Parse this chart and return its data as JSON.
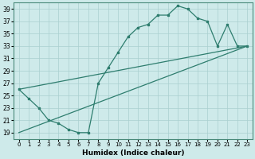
{
  "xlabel": "Humidex (Indice chaleur)",
  "bg_color": "#ceeaea",
  "grid_color": "#aacfcf",
  "line_color": "#2e7d6e",
  "xlim": [
    -0.5,
    23.5
  ],
  "ylim": [
    18,
    40
  ],
  "xticks": [
    0,
    1,
    2,
    3,
    4,
    5,
    6,
    7,
    8,
    9,
    10,
    11,
    12,
    13,
    14,
    15,
    16,
    17,
    18,
    19,
    20,
    21,
    22,
    23
  ],
  "yticks": [
    19,
    21,
    23,
    25,
    27,
    29,
    31,
    33,
    35,
    37,
    39
  ],
  "series1_x": [
    0,
    1,
    2,
    3,
    4,
    5,
    6,
    7,
    8,
    9,
    10,
    11,
    12,
    13,
    14,
    15,
    16,
    17,
    18,
    19,
    20,
    21,
    22,
    23
  ],
  "series1_y": [
    26,
    24.5,
    23,
    21,
    20.5,
    19.5,
    19,
    19,
    27,
    29.5,
    32,
    34.5,
    36,
    36.5,
    38,
    38,
    39.5,
    39,
    37.5,
    37,
    33,
    36.5,
    33,
    33
  ],
  "series2_x": [
    0,
    23
  ],
  "series2_y": [
    26,
    33
  ],
  "series3_x": [
    0,
    23
  ],
  "series3_y": [
    19,
    33
  ]
}
